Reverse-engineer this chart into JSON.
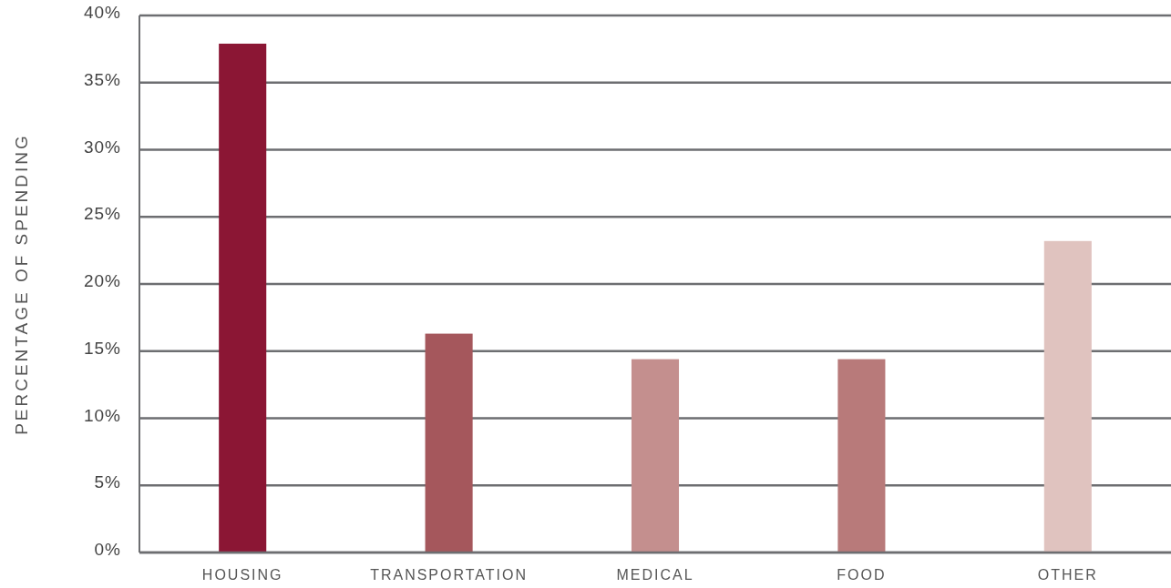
{
  "chart_data": {
    "type": "bar",
    "ylabel": "PERCENTAGE OF SPENDING",
    "categories": [
      "HOUSING",
      "TRANSPORTATION",
      "MEDICAL",
      "FOOD",
      "OTHER"
    ],
    "values": [
      37.9,
      16.3,
      14.4,
      14.4,
      23.2
    ],
    "colors": [
      "#8b1634",
      "#a5575c",
      "#c48f8e",
      "#b87a7a",
      "#e0c3bf"
    ],
    "ylim": [
      0,
      40
    ],
    "yticks": [
      {
        "value": 0,
        "label": "0%"
      },
      {
        "value": 5,
        "label": "5%"
      },
      {
        "value": 10,
        "label": "10%"
      },
      {
        "value": 15,
        "label": "15%"
      },
      {
        "value": 20,
        "label": "20%"
      },
      {
        "value": 25,
        "label": "25%"
      },
      {
        "value": 30,
        "label": "30%"
      },
      {
        "value": 35,
        "label": "35%"
      },
      {
        "value": 40,
        "label": "40%"
      }
    ],
    "grid": "y"
  }
}
